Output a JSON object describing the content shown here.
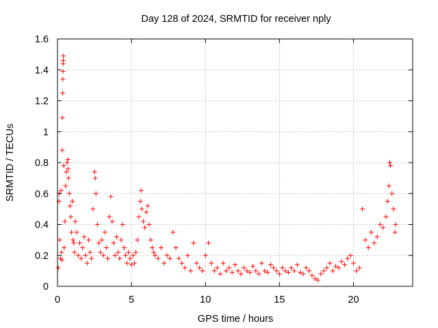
{
  "chart_data": {
    "type": "scatter",
    "title": "Day 128 of 2024, SRMTID for receiver nply",
    "xlabel": "GPS time / hours",
    "ylabel": "SRMTID / TECUs",
    "xlim": [
      0,
      24
    ],
    "ylim": [
      0,
      1.6
    ],
    "xticks": [
      0,
      5,
      10,
      15,
      20
    ],
    "xtick_labels": [
      "0",
      "5",
      "10",
      "15",
      "20"
    ],
    "yticks": [
      0,
      0.2,
      0.4,
      0.6,
      0.8,
      1.0,
      1.2,
      1.4,
      1.6
    ],
    "ytick_labels": [
      "0",
      "0.2",
      "0.4",
      "0.6",
      "0.8",
      "1",
      "1.2",
      "1.4",
      "1.6"
    ],
    "grid": true,
    "marker": "+",
    "colors": {
      "series": "#ff0000",
      "grid": "#a0a0a0",
      "axes": "#000000"
    },
    "series": [
      {
        "name": "SRMTID",
        "points": [
          [
            0.05,
            0.12
          ],
          [
            0.1,
            0.55
          ],
          [
            0.12,
            0.6
          ],
          [
            0.15,
            0.3
          ],
          [
            0.2,
            0.18
          ],
          [
            0.25,
            0.62
          ],
          [
            0.28,
            0.22
          ],
          [
            0.3,
            0.17
          ],
          [
            0.32,
            0.88
          ],
          [
            0.33,
            1.09
          ],
          [
            0.35,
            1.25
          ],
          [
            0.36,
            1.34
          ],
          [
            0.37,
            1.39
          ],
          [
            0.38,
            1.44
          ],
          [
            0.39,
            1.46
          ],
          [
            0.4,
            1.49
          ],
          [
            0.42,
            0.78
          ],
          [
            0.45,
            0.25
          ],
          [
            0.5,
            0.42
          ],
          [
            0.55,
            0.65
          ],
          [
            0.6,
            0.74
          ],
          [
            0.65,
            0.8
          ],
          [
            0.7,
            0.82
          ],
          [
            0.72,
            0.76
          ],
          [
            0.75,
            0.7
          ],
          [
            0.8,
            0.6
          ],
          [
            0.85,
            0.52
          ],
          [
            0.9,
            0.45
          ],
          [
            0.95,
            0.35
          ],
          [
            1.0,
            0.55
          ],
          [
            1.05,
            0.3
          ],
          [
            1.1,
            0.28
          ],
          [
            1.15,
            0.22
          ],
          [
            1.2,
            0.42
          ],
          [
            1.3,
            0.35
          ],
          [
            1.4,
            0.2
          ],
          [
            1.5,
            0.28
          ],
          [
            1.6,
            0.18
          ],
          [
            1.7,
            0.25
          ],
          [
            1.8,
            0.32
          ],
          [
            1.9,
            0.2
          ],
          [
            2.0,
            0.15
          ],
          [
            2.1,
            0.3
          ],
          [
            2.2,
            0.22
          ],
          [
            2.3,
            0.18
          ],
          [
            2.4,
            0.5
          ],
          [
            2.5,
            0.74
          ],
          [
            2.55,
            0.7
          ],
          [
            2.6,
            0.6
          ],
          [
            2.7,
            0.4
          ],
          [
            2.8,
            0.28
          ],
          [
            2.9,
            0.22
          ],
          [
            3.0,
            0.3
          ],
          [
            3.1,
            0.2
          ],
          [
            3.2,
            0.35
          ],
          [
            3.3,
            0.25
          ],
          [
            3.4,
            0.18
          ],
          [
            3.5,
            0.45
          ],
          [
            3.6,
            0.58
          ],
          [
            3.7,
            0.42
          ],
          [
            3.8,
            0.28
          ],
          [
            3.9,
            0.2
          ],
          [
            4.0,
            0.32
          ],
          [
            4.1,
            0.22
          ],
          [
            4.2,
            0.18
          ],
          [
            4.3,
            0.3
          ],
          [
            4.4,
            0.4
          ],
          [
            4.5,
            0.25
          ],
          [
            4.6,
            0.2
          ],
          [
            4.7,
            0.15
          ],
          [
            4.8,
            0.22
          ],
          [
            4.9,
            0.18
          ],
          [
            5.0,
            0.14
          ],
          [
            5.1,
            0.2
          ],
          [
            5.2,
            0.15
          ],
          [
            5.3,
            0.22
          ],
          [
            5.4,
            0.3
          ],
          [
            5.5,
            0.45
          ],
          [
            5.6,
            0.55
          ],
          [
            5.65,
            0.62
          ],
          [
            5.7,
            0.5
          ],
          [
            5.8,
            0.42
          ],
          [
            5.9,
            0.38
          ],
          [
            6.0,
            0.48
          ],
          [
            6.1,
            0.52
          ],
          [
            6.2,
            0.4
          ],
          [
            6.3,
            0.3
          ],
          [
            6.4,
            0.25
          ],
          [
            6.5,
            0.22
          ],
          [
            6.6,
            0.2
          ],
          [
            6.8,
            0.18
          ],
          [
            7.0,
            0.25
          ],
          [
            7.2,
            0.15
          ],
          [
            7.4,
            0.2
          ],
          [
            7.6,
            0.18
          ],
          [
            7.8,
            0.35
          ],
          [
            8.0,
            0.25
          ],
          [
            8.2,
            0.18
          ],
          [
            8.4,
            0.15
          ],
          [
            8.6,
            0.12
          ],
          [
            8.8,
            0.2
          ],
          [
            9.0,
            0.1
          ],
          [
            9.2,
            0.28
          ],
          [
            9.4,
            0.15
          ],
          [
            9.6,
            0.12
          ],
          [
            9.8,
            0.1
          ],
          [
            10.0,
            0.2
          ],
          [
            10.2,
            0.28
          ],
          [
            10.4,
            0.15
          ],
          [
            10.6,
            0.1
          ],
          [
            10.8,
            0.12
          ],
          [
            11.0,
            0.08
          ],
          [
            11.2,
            0.15
          ],
          [
            11.4,
            0.1
          ],
          [
            11.6,
            0.12
          ],
          [
            11.8,
            0.09
          ],
          [
            12.0,
            0.14
          ],
          [
            12.2,
            0.1
          ],
          [
            12.4,
            0.08
          ],
          [
            12.6,
            0.12
          ],
          [
            12.8,
            0.1
          ],
          [
            13.0,
            0.09
          ],
          [
            13.2,
            0.13
          ],
          [
            13.4,
            0.1
          ],
          [
            13.6,
            0.08
          ],
          [
            13.8,
            0.15
          ],
          [
            14.0,
            0.1
          ],
          [
            14.2,
            0.09
          ],
          [
            14.4,
            0.14
          ],
          [
            14.6,
            0.12
          ],
          [
            14.8,
            0.1
          ],
          [
            15.0,
            0.08
          ],
          [
            15.2,
            0.12
          ],
          [
            15.4,
            0.1
          ],
          [
            15.6,
            0.09
          ],
          [
            15.8,
            0.12
          ],
          [
            16.0,
            0.1
          ],
          [
            16.2,
            0.14
          ],
          [
            16.4,
            0.09
          ],
          [
            16.6,
            0.08
          ],
          [
            16.8,
            0.12
          ],
          [
            17.0,
            0.1
          ],
          [
            17.2,
            0.07
          ],
          [
            17.4,
            0.05
          ],
          [
            17.6,
            0.04
          ],
          [
            17.8,
            0.08
          ],
          [
            18.0,
            0.1
          ],
          [
            18.2,
            0.12
          ],
          [
            18.4,
            0.15
          ],
          [
            18.6,
            0.1
          ],
          [
            18.8,
            0.13
          ],
          [
            19.0,
            0.12
          ],
          [
            19.2,
            0.16
          ],
          [
            19.4,
            0.14
          ],
          [
            19.6,
            0.18
          ],
          [
            19.8,
            0.2
          ],
          [
            20.0,
            0.15
          ],
          [
            20.2,
            0.1
          ],
          [
            20.4,
            0.12
          ],
          [
            20.6,
            0.5
          ],
          [
            20.8,
            0.3
          ],
          [
            21.0,
            0.25
          ],
          [
            21.2,
            0.35
          ],
          [
            21.4,
            0.28
          ],
          [
            21.6,
            0.32
          ],
          [
            21.8,
            0.4
          ],
          [
            22.0,
            0.38
          ],
          [
            22.2,
            0.45
          ],
          [
            22.3,
            0.55
          ],
          [
            22.4,
            0.65
          ],
          [
            22.45,
            0.8
          ],
          [
            22.5,
            0.78
          ],
          [
            22.6,
            0.6
          ],
          [
            22.7,
            0.5
          ],
          [
            22.8,
            0.35
          ],
          [
            22.85,
            0.4
          ]
        ]
      }
    ]
  }
}
